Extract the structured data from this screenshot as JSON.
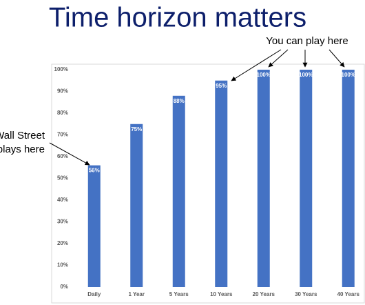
{
  "chart_data": {
    "type": "bar",
    "title": "Time horizon matters",
    "categories": [
      "Daily",
      "1 Year",
      "5 Years",
      "10 Years",
      "20 Years",
      "30 Years",
      "40 Years"
    ],
    "values": [
      56,
      75,
      88,
      95,
      100,
      100,
      100
    ],
    "value_labels": [
      "56%",
      "75%",
      "88%",
      "95%",
      "100%",
      "100%",
      "100%"
    ],
    "color": "#4472c4",
    "ylim": [
      0,
      100
    ],
    "yticks": [
      {
        "value": 0,
        "label": "0%"
      },
      {
        "value": 10,
        "label": "10%"
      },
      {
        "value": 20,
        "label": "20%"
      },
      {
        "value": 30,
        "label": "30%"
      },
      {
        "value": 40,
        "label": "40%"
      },
      {
        "value": 50,
        "label": "50%"
      },
      {
        "value": 60,
        "label": "60%"
      },
      {
        "value": 70,
        "label": "70%"
      },
      {
        "value": 80,
        "label": "80%"
      },
      {
        "value": 90,
        "label": "90%"
      },
      {
        "value": 100,
        "label": "100%"
      }
    ],
    "grid": false,
    "annotations": [
      "You can play here",
      [
        "Wall Street",
        "plays here"
      ]
    ]
  }
}
